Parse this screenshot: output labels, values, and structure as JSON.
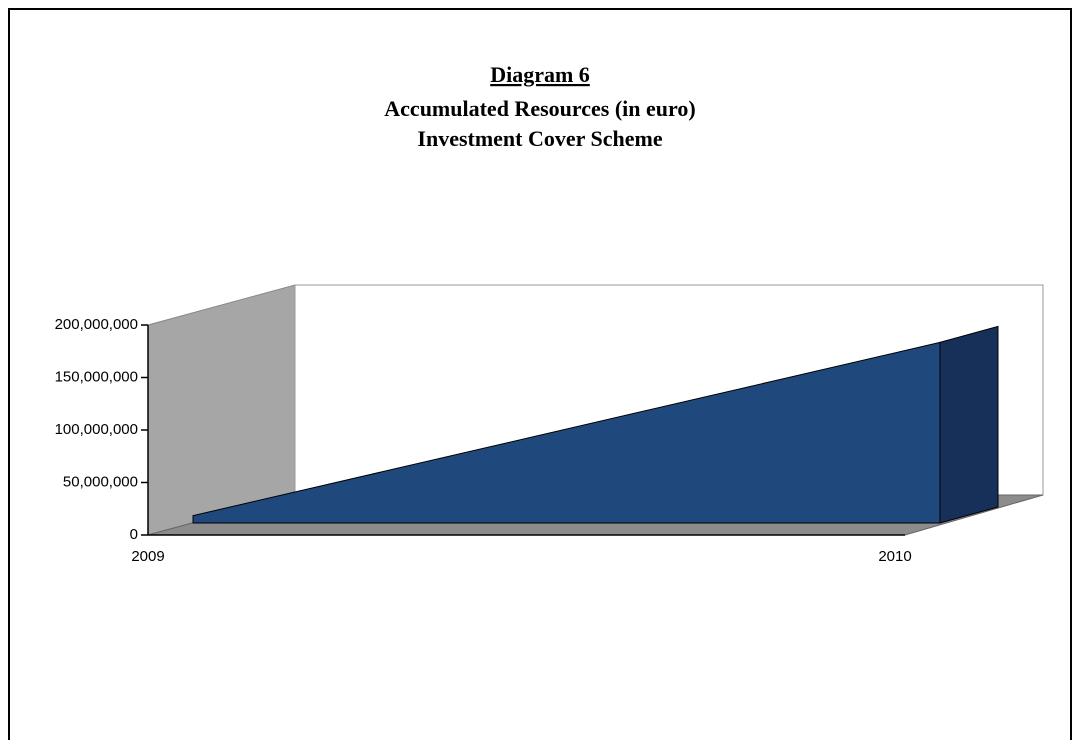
{
  "chart_data": {
    "type": "area3d",
    "title": "Diagram 6",
    "subtitle": [
      "Accumulated Resources (in euro)",
      "Investment Cover Scheme"
    ],
    "categories": [
      "2009",
      "2010"
    ],
    "series": [
      {
        "name": "Accumulated Resources",
        "color": "#1f497d",
        "values": [
          7000000,
          172000000
        ]
      }
    ],
    "ylim": [
      0,
      200000000
    ],
    "yticks": [
      0,
      {
        "value": 50000000,
        "label": "50,000,000"
      },
      {
        "value": 100000000,
        "label": "100,000,000"
      },
      {
        "value": 150000000,
        "label": "150,000,000"
      },
      {
        "value": 200000000,
        "label": "200,000,000"
      }
    ]
  }
}
